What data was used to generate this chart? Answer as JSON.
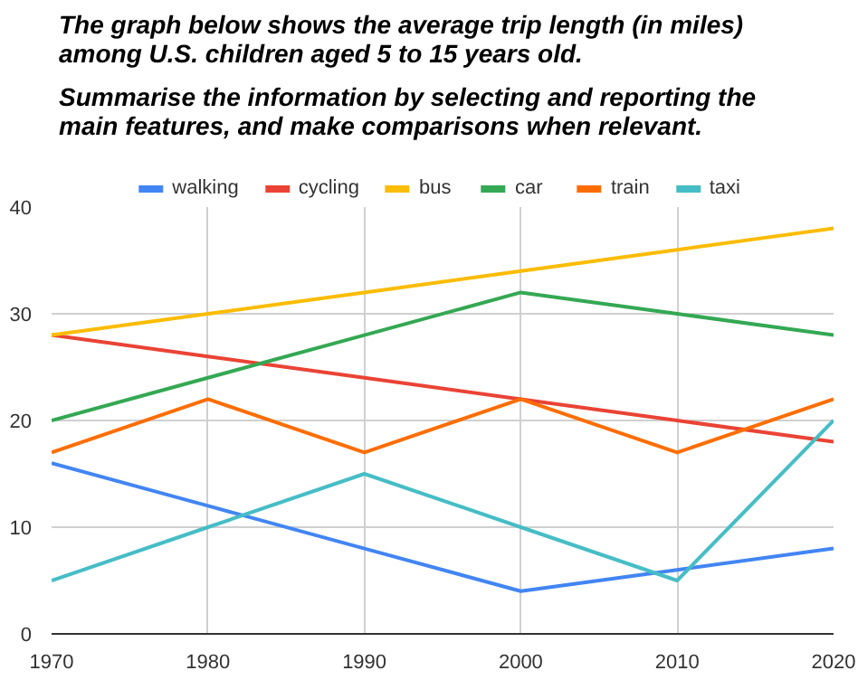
{
  "chart_data": {
    "type": "line",
    "title": "The graph below shows the average trip length (in miles) among U.S. children aged 5 to 15 years old.",
    "subtitle": "Summarise the information by selecting and reporting the main features, and make comparisons when relevant.",
    "x": [
      1970,
      1980,
      1990,
      2000,
      2010,
      2020
    ],
    "series": [
      {
        "name": "walking",
        "color": "#4285f4",
        "values": [
          16,
          12,
          8,
          4,
          6,
          8
        ]
      },
      {
        "name": "cycling",
        "color": "#ea4335",
        "values": [
          28,
          26,
          24,
          22,
          20,
          18
        ]
      },
      {
        "name": "bus",
        "color": "#fbbc04",
        "values": [
          28,
          30,
          32,
          34,
          36,
          38
        ]
      },
      {
        "name": "car",
        "color": "#34a853",
        "values": [
          20,
          24,
          28,
          32,
          30,
          28
        ]
      },
      {
        "name": "train",
        "color": "#ff6d01",
        "values": [
          17,
          22,
          17,
          22,
          17,
          22
        ]
      },
      {
        "name": "taxi",
        "color": "#46bdc6",
        "values": [
          5,
          10,
          15,
          10,
          5,
          20
        ]
      }
    ],
    "xlim": [
      1970,
      2020
    ],
    "xticks": [
      1970,
      1980,
      1990,
      2000,
      2010,
      2020
    ],
    "ylim": [
      0,
      40
    ],
    "yticks": [
      0,
      10,
      20,
      30,
      40
    ],
    "grid": true,
    "legend": "top",
    "marker": "none",
    "line_style": "solid"
  }
}
